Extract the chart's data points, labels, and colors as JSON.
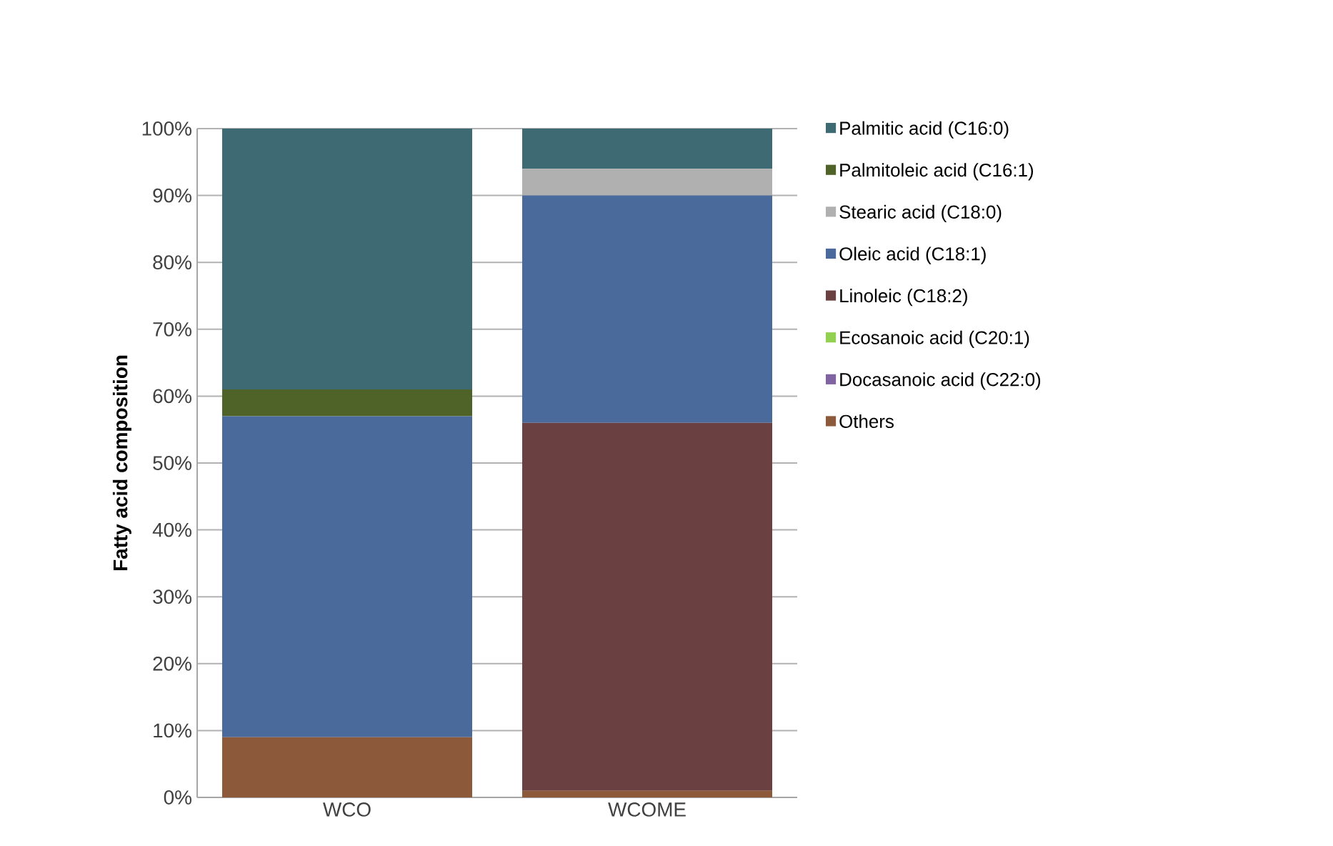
{
  "chart_data": {
    "type": "bar",
    "stacked": true,
    "ylabel": "Fatty acid composition",
    "categories": [
      "WCO",
      "WCOME"
    ],
    "series": [
      {
        "name": "Others",
        "color": "#8c5a3a",
        "values": [
          9,
          1
        ]
      },
      {
        "name": "Docasanoic acid (C22:0)",
        "color": "#8064a2",
        "values": [
          0,
          0
        ]
      },
      {
        "name": "Ecosanoic acid (C20:1)",
        "color": "#92d050",
        "values": [
          0,
          0
        ]
      },
      {
        "name": "Linoleic (C18:2)",
        "color": "#6b4040",
        "values": [
          0,
          55
        ]
      },
      {
        "name": "Oleic acid (C18:1)",
        "color": "#4a6a9c",
        "values": [
          48,
          34
        ]
      },
      {
        "name": "Stearic acid (C18:0)",
        "color": "#b0b0b0",
        "values": [
          0,
          4
        ]
      },
      {
        "name": "Palmitoleic acid (C16:1)",
        "color": "#4f6228",
        "values": [
          4,
          0
        ]
      },
      {
        "name": "Palmitic acid (C16:0)",
        "color": "#3e6a74",
        "values": [
          39,
          6
        ]
      }
    ],
    "ylim": [
      0,
      100
    ],
    "yticks": [
      {
        "value": 0,
        "label": "0%"
      },
      {
        "value": 10,
        "label": "10%"
      },
      {
        "value": 20,
        "label": "20%"
      },
      {
        "value": 30,
        "label": "30%"
      },
      {
        "value": 40,
        "label": "40%"
      },
      {
        "value": 50,
        "label": "50%"
      },
      {
        "value": 60,
        "label": "60%"
      },
      {
        "value": 70,
        "label": "70%"
      },
      {
        "value": 80,
        "label": "80%"
      },
      {
        "value": 90,
        "label": "90%"
      },
      {
        "value": 100,
        "label": "100%"
      }
    ],
    "grid": "y",
    "legend": "right"
  }
}
